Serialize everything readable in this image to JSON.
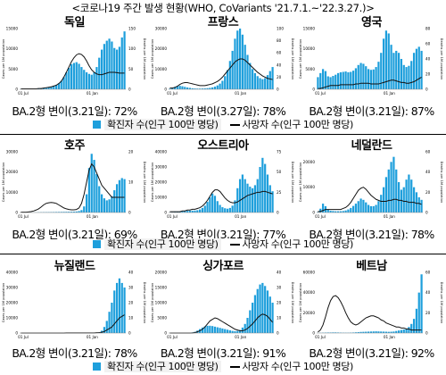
{
  "title": "<코로나19 주간 발생 현황(WHO, CoVariants '21.7.1.~'22.3.27.)>",
  "legend": {
    "cases_label": "확진자 수(인구 100만 명당)",
    "deaths_label": "사망자 수(인구 100만 명당)",
    "cases_color": "#1e9fdc",
    "deaths_color": "#000000"
  },
  "chart_data": [
    {
      "type": "bar",
      "country": "독일",
      "ba2_label": "BA.2형 변이(3.21일): 72%",
      "ylabel": "Cases per 1M population",
      "y2label": "Deaths per 1M population",
      "yticks": [
        "0",
        "5000",
        "10000",
        "15000"
      ],
      "y2ticks": [
        "0",
        "50",
        "100",
        "150"
      ],
      "xticks": [
        "01 Jul",
        "01 Jan"
      ],
      "ylim": [
        0,
        15000
      ],
      "y2lim": [
        0,
        150
      ],
      "x_start": "2021-07-01",
      "x_end": "2022-03-27",
      "cases": [
        40,
        45,
        50,
        60,
        80,
        110,
        150,
        200,
        260,
        330,
        420,
        520,
        650,
        850,
        1100,
        1500,
        2100,
        3000,
        4200,
        5300,
        6200,
        6500,
        6700,
        6300,
        5500,
        4800,
        4200,
        3800,
        3600,
        4200,
        5500,
        7800,
        9800,
        11200,
        12000,
        12500,
        11800,
        10200,
        9800,
        10500,
        12800,
        14300
      ],
      "deaths": [
        1,
        1,
        1,
        1,
        1,
        1,
        1,
        2,
        2,
        3,
        4,
        5,
        6,
        8,
        10,
        14,
        20,
        30,
        42,
        55,
        68,
        78,
        85,
        88,
        86,
        80,
        70,
        58,
        48,
        42,
        38,
        36,
        36,
        38,
        40,
        42,
        42,
        42,
        41,
        40,
        40,
        40
      ]
    },
    {
      "type": "bar",
      "country": "프랑스",
      "ba2_label": "BA.2형 변이(3.27일): 78%",
      "ylabel": "Cases per 1M population",
      "y2label": "Deaths per 1M population",
      "yticks": [
        "0",
        "10000",
        "20000",
        "30000"
      ],
      "y2ticks": [
        "0",
        "20",
        "40",
        "60",
        "80",
        "100"
      ],
      "xticks": [
        "01 Jul",
        "01 Jan"
      ],
      "ylim": [
        0,
        30000
      ],
      "y2lim": [
        0,
        100
      ],
      "x_start": "2021-07-01",
      "x_end": "2022-03-27",
      "cases": [
        300,
        600,
        1200,
        1600,
        1700,
        1500,
        1200,
        900,
        700,
        500,
        400,
        350,
        350,
        400,
        450,
        550,
        700,
        950,
        1300,
        1900,
        2800,
        4200,
        6500,
        9500,
        14000,
        19000,
        25000,
        29000,
        30000,
        27000,
        22000,
        17000,
        13000,
        10000,
        8000,
        6500,
        5500,
        5000,
        5500,
        7000,
        9000,
        11000
      ],
      "deaths": [
        2,
        2,
        3,
        5,
        8,
        10,
        11,
        11,
        10,
        9,
        8,
        7,
        6,
        6,
        6,
        7,
        8,
        9,
        11,
        13,
        16,
        20,
        25,
        30,
        35,
        40,
        45,
        48,
        50,
        50,
        48,
        44,
        40,
        36,
        32,
        28,
        25,
        22,
        20,
        18,
        17,
        16
      ]
    },
    {
      "type": "bar",
      "country": "영국",
      "ba2_label": "BA.2형 변이(3.21일): 87%",
      "ylabel": "Cases per 1M population",
      "y2label": "Deaths per 1M population",
      "yticks": [
        "0",
        "5000",
        "10000",
        "15000"
      ],
      "y2ticks": [
        "0",
        "20",
        "40",
        "60",
        "80"
      ],
      "xticks": [
        "01 Jul",
        "01 Jan"
      ],
      "ylim": [
        0,
        15000
      ],
      "y2lim": [
        0,
        80
      ],
      "x_start": "2021-07-01",
      "x_end": "2022-03-27",
      "cases": [
        3000,
        4000,
        5000,
        4500,
        3200,
        3000,
        3300,
        3600,
        4000,
        4200,
        4300,
        4400,
        4200,
        4300,
        4600,
        5200,
        6000,
        6500,
        6300,
        5700,
        5000,
        4800,
        4900,
        5500,
        6800,
        9000,
        12500,
        14500,
        13800,
        11000,
        9000,
        9500,
        9000,
        7500,
        6000,
        5500,
        5800,
        7000,
        9000,
        10000,
        10500,
        9500
      ],
      "deaths": [
        1,
        1,
        2,
        3,
        4,
        5,
        5,
        5,
        5,
        6,
        6,
        6,
        6,
        6,
        6,
        7,
        7,
        8,
        8,
        8,
        8,
        7,
        7,
        7,
        7,
        8,
        9,
        10,
        11,
        12,
        12,
        11,
        10,
        9,
        9,
        8,
        8,
        9,
        10,
        12,
        14,
        16
      ]
    },
    {
      "type": "bar",
      "country": "호주",
      "ba2_label": "BA.2형 변이(3.21일): 69%",
      "ylabel": "Cases per 1M population",
      "y2label": "Deaths per 1M population",
      "yticks": [
        "0",
        "10000",
        "20000",
        "30000"
      ],
      "y2ticks": [
        "0",
        "10",
        "20"
      ],
      "xticks": [
        "01 Jul",
        "01 Jan"
      ],
      "ylim": [
        0,
        30000
      ],
      "y2lim": [
        0,
        20
      ],
      "x_start": "2021-07-01",
      "x_end": "2022-03-27",
      "cases": [
        10,
        10,
        15,
        20,
        30,
        50,
        70,
        100,
        130,
        160,
        180,
        200,
        220,
        240,
        260,
        280,
        300,
        320,
        340,
        360,
        380,
        420,
        500,
        700,
        1200,
        3000,
        9000,
        22000,
        29000,
        26000,
        19000,
        13000,
        9000,
        7000,
        6000,
        6500,
        8000,
        11000,
        14000,
        16000,
        17000,
        16500
      ],
      "deaths": [
        0.1,
        0.1,
        0.1,
        0.2,
        0.3,
        0.5,
        0.8,
        1.2,
        1.8,
        2.5,
        3,
        3.2,
        3.3,
        3.2,
        3.0,
        2.5,
        2.0,
        1.5,
        1.2,
        1.0,
        0.9,
        0.9,
        1.0,
        1.5,
        3,
        6,
        10,
        14,
        16,
        15,
        13,
        11,
        9,
        8,
        7,
        6,
        5,
        5,
        5,
        5,
        5,
        5
      ]
    },
    {
      "type": "bar",
      "country": "오스트리아",
      "ba2_label": "BA.2형 변이(3.21일): 77%",
      "ylabel": "Cases per 1M population",
      "y2label": "Deaths per 1M population",
      "yticks": [
        "0",
        "10000",
        "20000",
        "30000",
        "40000"
      ],
      "y2ticks": [
        "0",
        "25",
        "50",
        "75"
      ],
      "xticks": [
        "01 Jul",
        "01 Jan"
      ],
      "ylim": [
        0,
        40000
      ],
      "y2lim": [
        0,
        75
      ],
      "x_start": "2021-07-01",
      "x_end": "2022-03-27",
      "cases": [
        100,
        150,
        250,
        400,
        600,
        800,
        1000,
        1100,
        1200,
        1200,
        1300,
        1500,
        2000,
        3000,
        4500,
        7000,
        10000,
        12500,
        11000,
        7500,
        5000,
        3500,
        2800,
        2500,
        3000,
        4500,
        8000,
        16000,
        22000,
        25000,
        22000,
        19000,
        17000,
        16000,
        18000,
        22000,
        30000,
        36000,
        32000,
        25000,
        18000,
        14000
      ],
      "deaths": [
        1,
        1,
        1,
        1,
        1,
        2,
        2,
        3,
        3,
        4,
        4,
        5,
        6,
        8,
        11,
        15,
        20,
        25,
        28,
        28,
        26,
        22,
        18,
        15,
        13,
        12,
        12,
        13,
        15,
        17,
        19,
        21,
        22,
        23,
        24,
        25,
        25,
        26,
        26,
        25,
        24,
        23
      ]
    },
    {
      "type": "bar",
      "country": "네덜란드",
      "ba2_label": "BA.2형 변이(3.21일): 78%",
      "ylabel": "Cases per 1M population",
      "y2label": "Deaths per 1M population",
      "yticks": [
        "0",
        "10000",
        "20000"
      ],
      "y2ticks": [
        "0",
        "20",
        "40",
        "60"
      ],
      "xticks": [
        "01 Jul",
        "01 Jan"
      ],
      "ylim": [
        0,
        24000
      ],
      "y2lim": [
        0,
        60
      ],
      "x_start": "2021-07-01",
      "x_end": "2022-03-27",
      "cases": [
        200,
        1500,
        3500,
        2500,
        1200,
        700,
        600,
        500,
        500,
        500,
        600,
        800,
        1200,
        1800,
        2600,
        3500,
        4500,
        5500,
        5000,
        4000,
        3000,
        2500,
        2500,
        3000,
        4500,
        7000,
        10000,
        14000,
        17000,
        20000,
        22000,
        17000,
        12000,
        9000,
        10000,
        13000,
        15000,
        13000,
        10000,
        8000,
        6000,
        5000
      ],
      "deaths": [
        1,
        1,
        2,
        3,
        3,
        3,
        3,
        3,
        3,
        3,
        4,
        5,
        7,
        10,
        14,
        18,
        22,
        24,
        25,
        23,
        20,
        17,
        15,
        13,
        12,
        11,
        11,
        11,
        12,
        12,
        13,
        13,
        12,
        12,
        11,
        11,
        10,
        10,
        10,
        9,
        9,
        8
      ]
    },
    {
      "type": "bar",
      "country": "뉴질랜드",
      "ba2_label": "BA.2형 변이(3.21일): 78%",
      "ylabel": "Cases per 1M population",
      "y2label": "Deaths per 1M population",
      "yticks": [
        "0",
        "10000",
        "20000",
        "30000",
        "40000"
      ],
      "y2ticks": [
        "0",
        "10",
        "20",
        "30",
        "40"
      ],
      "xticks": [
        "01 Jul",
        "01 Jan"
      ],
      "ylim": [
        0,
        40000
      ],
      "y2lim": [
        0,
        40
      ],
      "x_start": "2021-07-01",
      "x_end": "2022-03-27",
      "cases": [
        0,
        0,
        0,
        0,
        0,
        0,
        10,
        30,
        60,
        50,
        40,
        40,
        50,
        60,
        80,
        100,
        120,
        150,
        170,
        180,
        170,
        160,
        150,
        140,
        130,
        120,
        110,
        100,
        100,
        120,
        200,
        500,
        1500,
        4000,
        8000,
        14000,
        20000,
        28000,
        33000,
        36000,
        33000,
        30000
      ],
      "deaths": [
        0,
        0,
        0,
        0,
        0,
        0,
        0,
        0,
        0,
        0,
        0,
        0,
        0,
        0,
        0,
        0,
        0,
        0,
        0.1,
        0.1,
        0.1,
        0.1,
        0.1,
        0.1,
        0.1,
        0.1,
        0.1,
        0.1,
        0.1,
        0.1,
        0.2,
        0.3,
        0.5,
        1,
        2,
        3,
        4,
        6,
        8,
        10,
        11,
        12
      ]
    },
    {
      "type": "bar",
      "country": "싱가포르",
      "ba2_label": "BA.2형 변이(3.21일): 91%",
      "ylabel": "Cases per 1M population",
      "y2label": "Deaths per 1M population",
      "yticks": [
        "0",
        "5000",
        "10000",
        "15000",
        "20000"
      ],
      "y2ticks": [
        "0",
        "10",
        "20",
        "30",
        "40"
      ],
      "xticks": [
        "01 Jul",
        "01 Jan"
      ],
      "ylim": [
        0,
        20000
      ],
      "y2lim": [
        0,
        40
      ],
      "x_start": "2021-07-01",
      "x_end": "2022-03-27",
      "cases": [
        20,
        30,
        50,
        60,
        40,
        30,
        40,
        60,
        100,
        200,
        400,
        800,
        1300,
        1800,
        2200,
        2400,
        2400,
        2300,
        2100,
        1900,
        1700,
        1500,
        1300,
        1100,
        900,
        700,
        600,
        700,
        1000,
        1800,
        3000,
        5000,
        7500,
        10000,
        12500,
        14500,
        16000,
        16500,
        15500,
        14000,
        12000,
        10000
      ],
      "deaths": [
        0,
        0,
        0,
        0,
        0,
        0,
        0,
        0,
        0,
        0.1,
        0.3,
        0.8,
        1.5,
        2.5,
        4,
        6,
        8,
        9,
        10,
        9.5,
        8.5,
        7.5,
        6.5,
        5.5,
        4.5,
        3.5,
        2.5,
        2,
        1.5,
        1.5,
        2,
        3,
        4.5,
        6,
        8,
        10,
        11.5,
        12.5,
        12,
        11,
        9,
        7
      ]
    },
    {
      "type": "bar",
      "country": "베트남",
      "ba2_label": "BA.2형 변이(3.21일): 92%",
      "ylabel": "Cases per 1M population",
      "y2label": "Deaths per 1M population",
      "yticks": [
        "0",
        "20000",
        "40000",
        "60000"
      ],
      "y2ticks": [
        "0",
        "20",
        "40",
        "60"
      ],
      "xticks": [
        "01 Jul",
        "01 Jan"
      ],
      "ylim": [
        0,
        60000
      ],
      "y2lim": [
        0,
        60
      ],
      "x_start": "2021-07-01",
      "x_end": "2022-03-27",
      "cases": [
        100,
        200,
        300,
        400,
        500,
        500,
        600,
        600,
        500,
        400,
        300,
        300,
        300,
        400,
        500,
        700,
        900,
        1100,
        1200,
        1300,
        1400,
        1500,
        1600,
        1700,
        1600,
        1500,
        1400,
        1300,
        1200,
        1300,
        1500,
        2000,
        2500,
        3000,
        3500,
        4500,
        6000,
        9000,
        14000,
        24000,
        40000,
        58000
      ],
      "deaths": [
        1,
        3,
        8,
        16,
        25,
        32,
        36,
        37,
        35,
        31,
        26,
        20,
        15,
        11,
        9,
        8,
        9,
        11,
        13,
        15,
        16,
        17,
        17,
        16,
        15,
        13,
        12,
        10,
        9,
        8,
        7,
        6,
        6,
        5,
        5,
        4,
        4,
        3,
        3,
        3,
        3,
        3
      ]
    }
  ]
}
